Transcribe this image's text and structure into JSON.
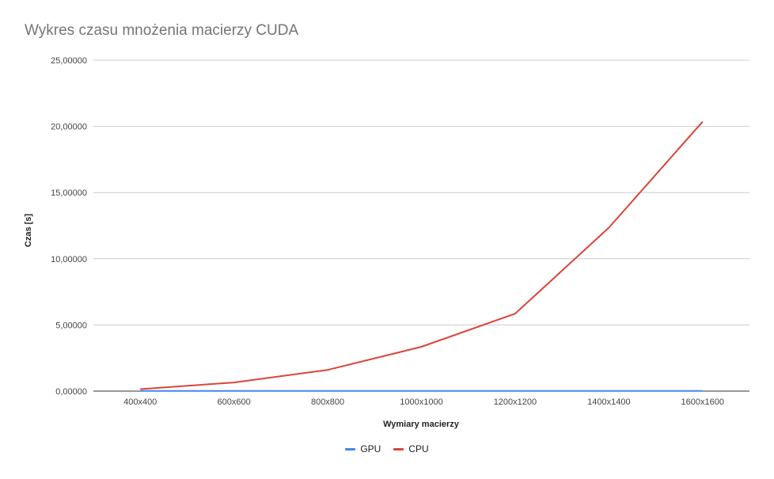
{
  "chart_data": {
    "type": "line",
    "title": "Wykres czasu mnożenia macierzy CUDA",
    "xlabel": "Wymiary macierzy",
    "ylabel": "Czas [s]",
    "categories": [
      "400x400",
      "600x600",
      "800x800",
      "1000x1000",
      "1200x1200",
      "1400x1400",
      "1600x1600"
    ],
    "ylim": [
      0,
      25
    ],
    "yticks": [
      "0,00000",
      "5,00000",
      "10,00000",
      "15,00000",
      "20,00000",
      "25,00000"
    ],
    "grid": true,
    "legend_position": "bottom",
    "series": [
      {
        "name": "GPU",
        "color": "#4285f4",
        "values": [
          0.01,
          0.01,
          0.01,
          0.01,
          0.01,
          0.01,
          0.02
        ]
      },
      {
        "name": "CPU",
        "color": "#db4437",
        "values": [
          0.15,
          0.65,
          1.6,
          3.35,
          5.85,
          12.35,
          20.35
        ]
      }
    ]
  }
}
